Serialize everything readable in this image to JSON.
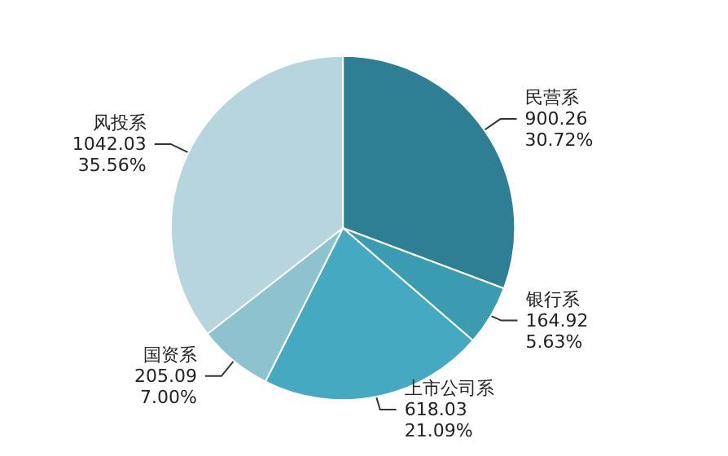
{
  "chart_data": {
    "type": "pie",
    "categories": [
      "民营系",
      "银行系",
      "上市公司系",
      "国资系",
      "风投系"
    ],
    "values": [
      900.26,
      164.92,
      618.03,
      205.09,
      1042.03
    ],
    "value_labels": [
      "900.26\n30.72%",
      "164.92\n5.63%",
      "618.03\n21.09%",
      "205.09\n7.00%",
      "1042.03\n35.56%"
    ],
    "colors": [
      "#2e7f93",
      "#3b9bb0",
      "#45a9c2",
      "#8cc3cf",
      "#b7d5df"
    ],
    "legend": false
  }
}
